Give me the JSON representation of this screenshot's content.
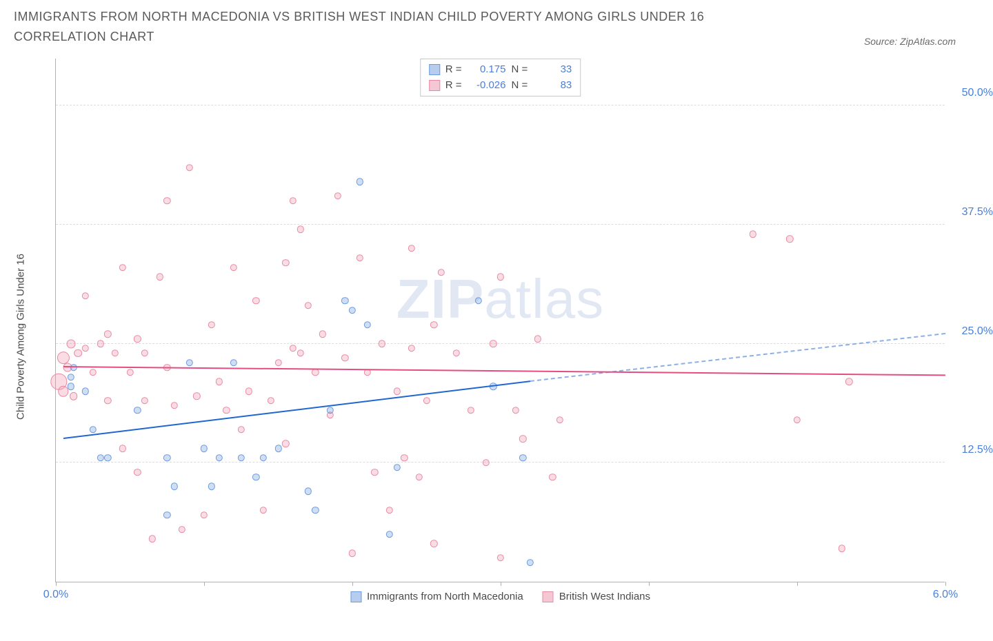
{
  "title": "IMMIGRANTS FROM NORTH MACEDONIA VS BRITISH WEST INDIAN CHILD POVERTY AMONG GIRLS UNDER 16 CORRELATION CHART",
  "source": "Source: ZipAtlas.com",
  "watermark_a": "ZIP",
  "watermark_b": "atlas",
  "chart": {
    "type": "scatter",
    "ylabel": "Child Poverty Among Girls Under 16",
    "xlim": [
      0,
      6
    ],
    "ylim": [
      0,
      55
    ],
    "x_ticks": [
      0,
      1,
      2,
      3,
      4,
      5,
      6
    ],
    "x_tick_labels": {
      "0": "0.0%",
      "6": "6.0%"
    },
    "y_ticks": [
      12.5,
      25.0,
      37.5,
      50.0
    ],
    "y_tick_labels": [
      "12.5%",
      "25.0%",
      "37.5%",
      "50.0%"
    ],
    "grid_levels": [
      12.5,
      25.0,
      37.5,
      50.0
    ],
    "background_color": "#ffffff",
    "grid_color": "#dcdcdc",
    "axis_color": "#b0b0b0",
    "ytick_color": "#4a7fd6",
    "series": [
      {
        "id": "blue",
        "label": "Immigrants from North Macedonia",
        "fill": "rgba(120,160,220,0.35)",
        "stroke": "#6a9adf",
        "legend_sq_fill": "#b7cdee",
        "legend_sq_stroke": "#6a9adf",
        "r": "0.175",
        "n": "33",
        "trend": {
          "x1": 0.05,
          "y1": 15.0,
          "x2": 3.2,
          "y2": 21.0,
          "color": "#1e66d0",
          "dash_x2": 6.0,
          "dash_y2": 26.0,
          "dash_color": "#8bb0e8"
        },
        "points": [
          {
            "x": 0.1,
            "y": 20.5,
            "s": 8
          },
          {
            "x": 0.1,
            "y": 21.5,
            "s": 8
          },
          {
            "x": 0.12,
            "y": 22.5,
            "s": 8
          },
          {
            "x": 0.2,
            "y": 20.0,
            "s": 8
          },
          {
            "x": 0.25,
            "y": 16.0,
            "s": 8
          },
          {
            "x": 0.3,
            "y": 13.0,
            "s": 8
          },
          {
            "x": 0.35,
            "y": 13.0,
            "s": 8
          },
          {
            "x": 0.55,
            "y": 18.0,
            "s": 8
          },
          {
            "x": 0.75,
            "y": 7.0,
            "s": 8
          },
          {
            "x": 0.75,
            "y": 13.0,
            "s": 8
          },
          {
            "x": 0.8,
            "y": 10.0,
            "s": 8
          },
          {
            "x": 0.9,
            "y": 23.0,
            "s": 8
          },
          {
            "x": 1.0,
            "y": 14.0,
            "s": 8
          },
          {
            "x": 1.05,
            "y": 10.0,
            "s": 8
          },
          {
            "x": 1.1,
            "y": 13.0,
            "s": 8
          },
          {
            "x": 1.2,
            "y": 23.0,
            "s": 8
          },
          {
            "x": 1.25,
            "y": 13.0,
            "s": 8
          },
          {
            "x": 1.35,
            "y": 11.0,
            "s": 8
          },
          {
            "x": 1.4,
            "y": 13.0,
            "s": 8
          },
          {
            "x": 1.5,
            "y": 14.0,
            "s": 8
          },
          {
            "x": 1.7,
            "y": 9.5,
            "s": 8
          },
          {
            "x": 1.75,
            "y": 7.5,
            "s": 8
          },
          {
            "x": 1.85,
            "y": 18.0,
            "s": 8
          },
          {
            "x": 1.95,
            "y": 29.5,
            "s": 8
          },
          {
            "x": 2.0,
            "y": 28.5,
            "s": 8
          },
          {
            "x": 2.05,
            "y": 42.0,
            "s": 8
          },
          {
            "x": 2.1,
            "y": 27.0,
            "s": 8
          },
          {
            "x": 2.25,
            "y": 5.0,
            "s": 8
          },
          {
            "x": 2.3,
            "y": 12.0,
            "s": 8
          },
          {
            "x": 2.85,
            "y": 29.5,
            "s": 8
          },
          {
            "x": 2.95,
            "y": 20.5,
            "s": 8
          },
          {
            "x": 3.2,
            "y": 2.0,
            "s": 8
          },
          {
            "x": 3.15,
            "y": 13.0,
            "s": 8
          }
        ]
      },
      {
        "id": "pink",
        "label": "British West Indians",
        "fill": "rgba(240,150,170,0.32)",
        "stroke": "#e98aa3",
        "legend_sq_fill": "#f5c6d3",
        "legend_sq_stroke": "#e98aa3",
        "r": "-0.026",
        "n": "83",
        "trend": {
          "x1": 0.05,
          "y1": 22.5,
          "x2": 6.0,
          "y2": 21.6,
          "color": "#e34d80",
          "dash_x2": 6.0,
          "dash_y2": 21.6,
          "dash_color": "#e34d80"
        },
        "points": [
          {
            "x": 0.02,
            "y": 21.0,
            "s": 18
          },
          {
            "x": 0.05,
            "y": 23.5,
            "s": 14
          },
          {
            "x": 0.05,
            "y": 20.0,
            "s": 12
          },
          {
            "x": 0.08,
            "y": 22.5,
            "s": 10
          },
          {
            "x": 0.1,
            "y": 25.0,
            "s": 10
          },
          {
            "x": 0.12,
            "y": 19.5,
            "s": 9
          },
          {
            "x": 0.15,
            "y": 24.0,
            "s": 9
          },
          {
            "x": 0.2,
            "y": 30.0,
            "s": 8
          },
          {
            "x": 0.2,
            "y": 24.5,
            "s": 8
          },
          {
            "x": 0.25,
            "y": 22.0,
            "s": 8
          },
          {
            "x": 0.3,
            "y": 25.0,
            "s": 8
          },
          {
            "x": 0.35,
            "y": 26.0,
            "s": 8
          },
          {
            "x": 0.35,
            "y": 19.0,
            "s": 8
          },
          {
            "x": 0.4,
            "y": 24.0,
            "s": 8
          },
          {
            "x": 0.45,
            "y": 14.0,
            "s": 8
          },
          {
            "x": 0.5,
            "y": 22.0,
            "s": 8
          },
          {
            "x": 0.55,
            "y": 25.5,
            "s": 8
          },
          {
            "x": 0.55,
            "y": 11.5,
            "s": 8
          },
          {
            "x": 0.6,
            "y": 19.0,
            "s": 8
          },
          {
            "x": 0.6,
            "y": 24.0,
            "s": 8
          },
          {
            "x": 0.65,
            "y": 4.5,
            "s": 8
          },
          {
            "x": 0.7,
            "y": 32.0,
            "s": 8
          },
          {
            "x": 0.75,
            "y": 22.5,
            "s": 8
          },
          {
            "x": 0.75,
            "y": 40.0,
            "s": 8
          },
          {
            "x": 0.8,
            "y": 18.5,
            "s": 8
          },
          {
            "x": 0.85,
            "y": 5.5,
            "s": 8
          },
          {
            "x": 0.9,
            "y": 43.5,
            "s": 8
          },
          {
            "x": 0.95,
            "y": 19.5,
            "s": 8
          },
          {
            "x": 1.0,
            "y": 7.0,
            "s": 8
          },
          {
            "x": 1.05,
            "y": 27.0,
            "s": 8
          },
          {
            "x": 1.1,
            "y": 21.0,
            "s": 8
          },
          {
            "x": 1.15,
            "y": 18.0,
            "s": 8
          },
          {
            "x": 1.2,
            "y": 33.0,
            "s": 8
          },
          {
            "x": 1.25,
            "y": 16.0,
            "s": 8
          },
          {
            "x": 1.3,
            "y": 20.0,
            "s": 8
          },
          {
            "x": 1.35,
            "y": 29.5,
            "s": 8
          },
          {
            "x": 1.4,
            "y": 7.5,
            "s": 8
          },
          {
            "x": 1.45,
            "y": 19.0,
            "s": 8
          },
          {
            "x": 1.5,
            "y": 23.0,
            "s": 8
          },
          {
            "x": 1.55,
            "y": 33.5,
            "s": 8
          },
          {
            "x": 1.55,
            "y": 14.5,
            "s": 8
          },
          {
            "x": 1.6,
            "y": 40.0,
            "s": 8
          },
          {
            "x": 1.65,
            "y": 24.0,
            "s": 8
          },
          {
            "x": 1.65,
            "y": 37.0,
            "s": 8
          },
          {
            "x": 1.7,
            "y": 29.0,
            "s": 8
          },
          {
            "x": 1.75,
            "y": 22.0,
            "s": 8
          },
          {
            "x": 1.8,
            "y": 26.0,
            "s": 8
          },
          {
            "x": 1.85,
            "y": 17.5,
            "s": 8
          },
          {
            "x": 1.9,
            "y": 40.5,
            "s": 8
          },
          {
            "x": 1.95,
            "y": 23.5,
            "s": 8
          },
          {
            "x": 2.0,
            "y": 3.0,
            "s": 8
          },
          {
            "x": 2.05,
            "y": 34.0,
            "s": 8
          },
          {
            "x": 2.1,
            "y": 22.0,
            "s": 8
          },
          {
            "x": 2.15,
            "y": 11.5,
            "s": 8
          },
          {
            "x": 2.2,
            "y": 25.0,
            "s": 8
          },
          {
            "x": 2.25,
            "y": 7.5,
            "s": 8
          },
          {
            "x": 2.3,
            "y": 20.0,
            "s": 8
          },
          {
            "x": 2.35,
            "y": 13.0,
            "s": 8
          },
          {
            "x": 2.4,
            "y": 24.5,
            "s": 8
          },
          {
            "x": 2.4,
            "y": 35.0,
            "s": 8
          },
          {
            "x": 2.45,
            "y": 11.0,
            "s": 8
          },
          {
            "x": 2.5,
            "y": 19.0,
            "s": 8
          },
          {
            "x": 2.55,
            "y": 4.0,
            "s": 8
          },
          {
            "x": 2.6,
            "y": 32.5,
            "s": 8
          },
          {
            "x": 2.7,
            "y": 24.0,
            "s": 8
          },
          {
            "x": 2.8,
            "y": 18.0,
            "s": 8
          },
          {
            "x": 2.9,
            "y": 12.5,
            "s": 8
          },
          {
            "x": 2.95,
            "y": 25.0,
            "s": 8
          },
          {
            "x": 3.0,
            "y": 32.0,
            "s": 8
          },
          {
            "x": 3.1,
            "y": 18.0,
            "s": 8
          },
          {
            "x": 3.15,
            "y": 15.0,
            "s": 8
          },
          {
            "x": 3.25,
            "y": 25.5,
            "s": 8
          },
          {
            "x": 3.35,
            "y": 11.0,
            "s": 8
          },
          {
            "x": 3.4,
            "y": 17.0,
            "s": 8
          },
          {
            "x": 4.7,
            "y": 36.5,
            "s": 8
          },
          {
            "x": 4.95,
            "y": 36.0,
            "s": 8
          },
          {
            "x": 5.0,
            "y": 17.0,
            "s": 8
          },
          {
            "x": 5.3,
            "y": 3.5,
            "s": 8
          },
          {
            "x": 5.35,
            "y": 21.0,
            "s": 8
          },
          {
            "x": 3.0,
            "y": 2.5,
            "s": 8
          },
          {
            "x": 2.55,
            "y": 27.0,
            "s": 8
          },
          {
            "x": 0.45,
            "y": 33.0,
            "s": 8
          },
          {
            "x": 1.6,
            "y": 24.5,
            "s": 8
          }
        ]
      }
    ]
  },
  "legend_top": {
    "r_label": "R =",
    "n_label": "N ="
  }
}
